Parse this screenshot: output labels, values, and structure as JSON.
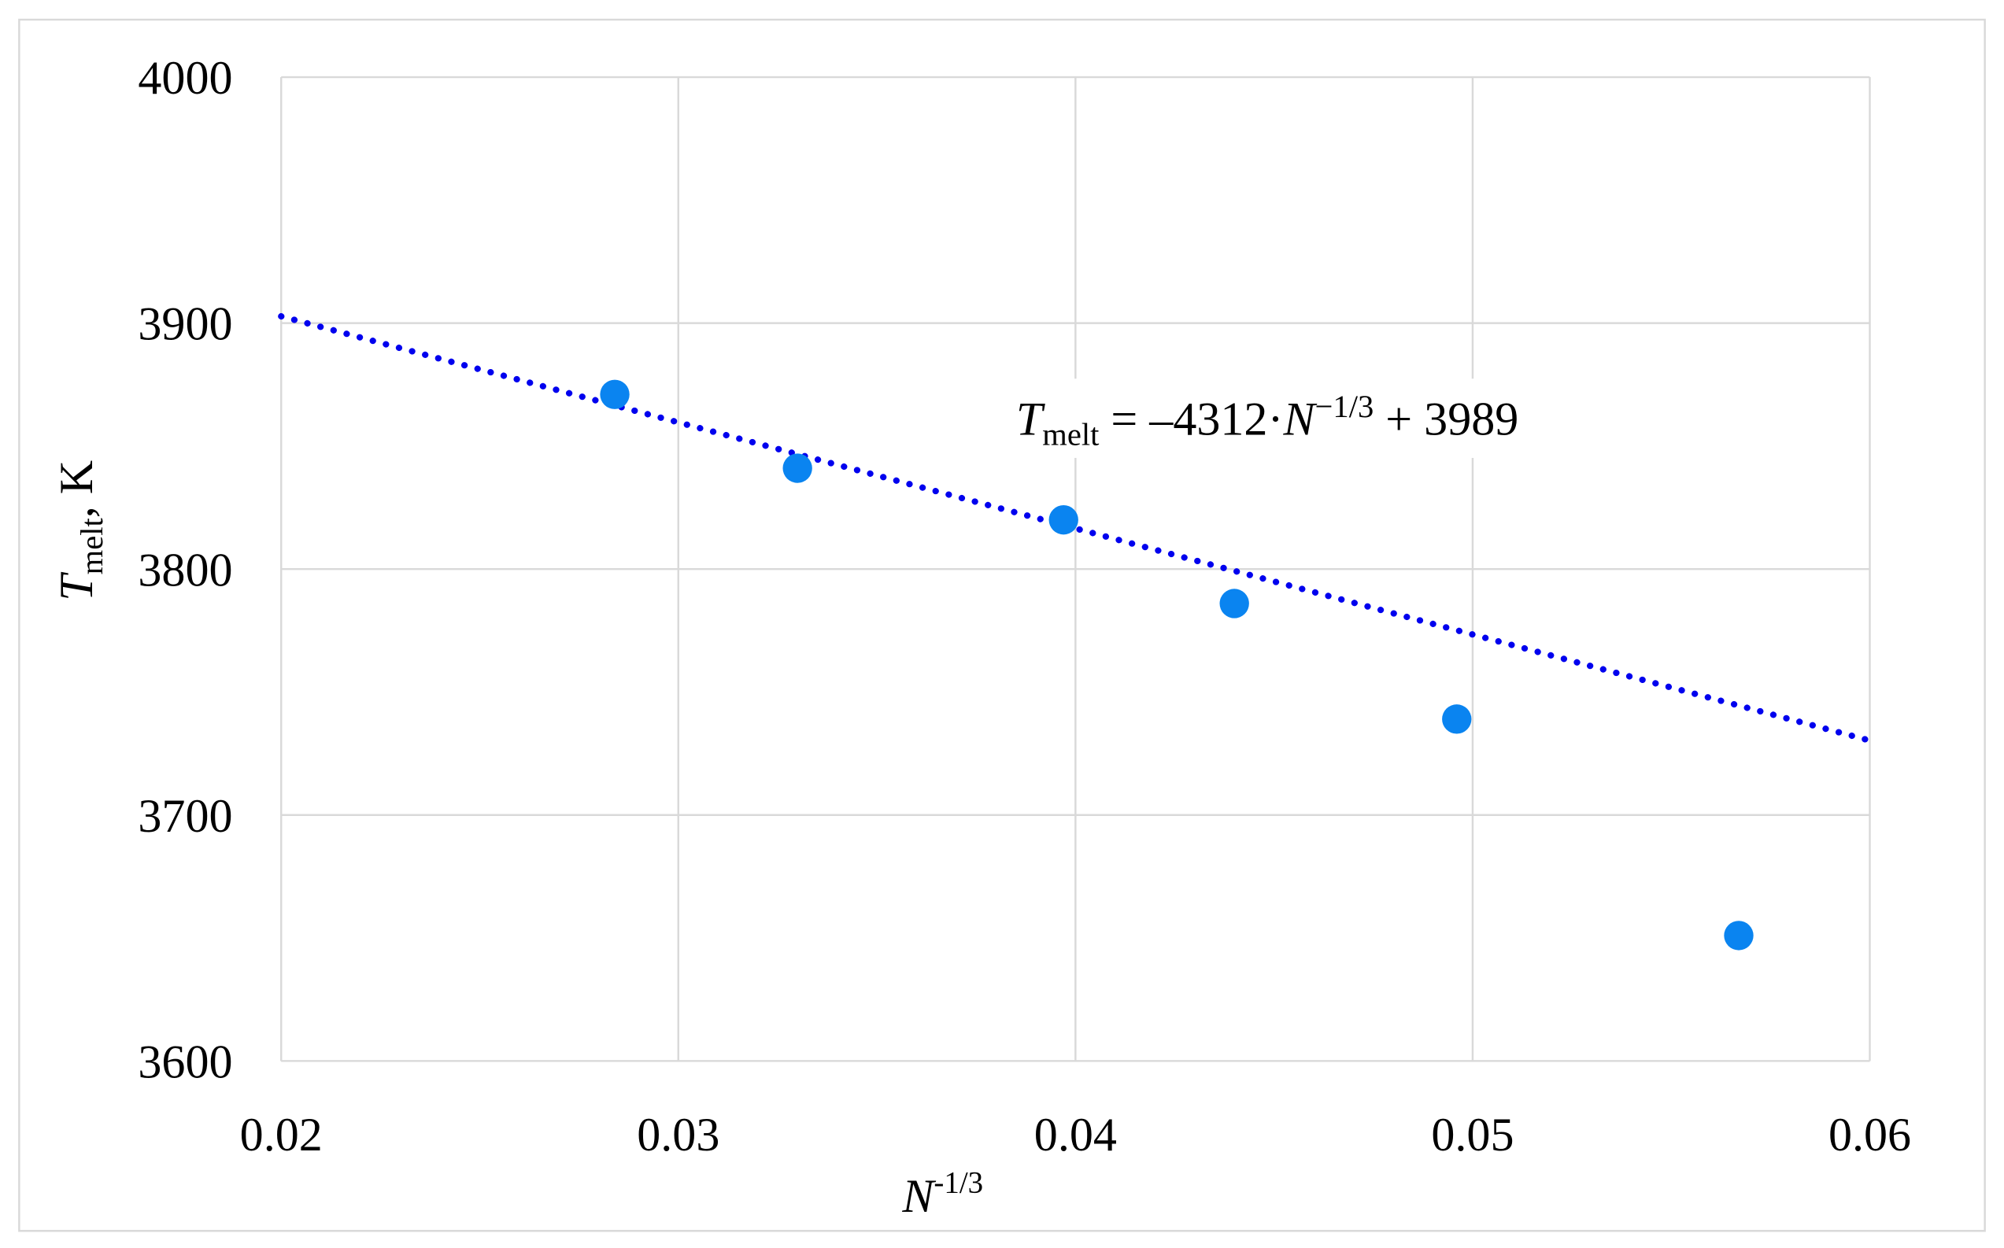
{
  "chart_data": {
    "type": "scatter",
    "title": "",
    "xlabel": "N^-1/3",
    "xlabel_base": "N",
    "xlabel_sup": "-1/3",
    "ylabel_main": "T",
    "ylabel_sub": "melt",
    "ylabel_unit": ", K",
    "xlim": [
      0.02,
      0.06
    ],
    "ylim": [
      3600,
      4000
    ],
    "xticks": [
      "0.02",
      "0.03",
      "0.04",
      "0.05",
      "0.06"
    ],
    "yticks": [
      "3600",
      "3700",
      "3800",
      "3900",
      "4000"
    ],
    "grid": true,
    "legend": "none",
    "series": [
      {
        "color": "#0a84f0",
        "x": [
          0.0284,
          0.033,
          0.0397,
          0.044,
          0.0496,
          0.0567
        ],
        "y": [
          3871,
          3841,
          3820,
          3786,
          3739,
          3651
        ]
      }
    ],
    "trendline": {
      "type": "linear",
      "style": "dotted",
      "color": "#0000ee",
      "slope": -4312,
      "intercept": 3989
    },
    "annotation": {
      "T": "T",
      "sub": "melt",
      "eq1": " = –4312·",
      "N": "N",
      "sup": "−1/3",
      "eq2": " + 3989"
    }
  }
}
